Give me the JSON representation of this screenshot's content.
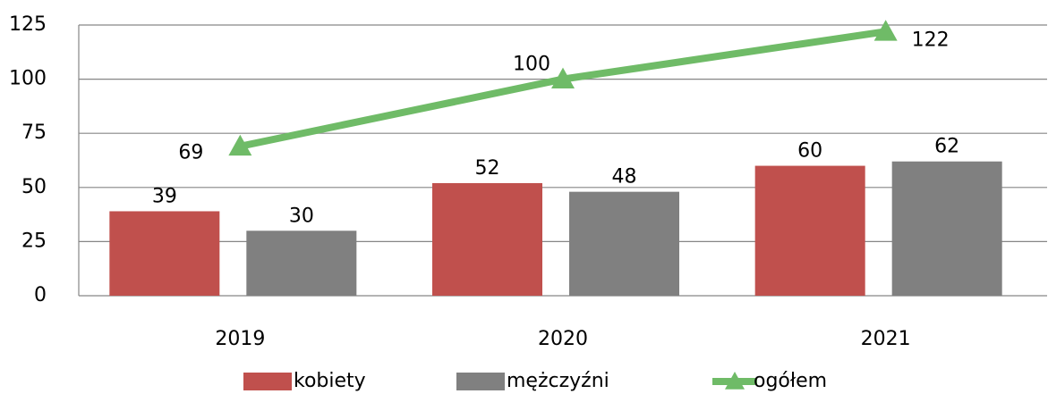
{
  "chart_data": {
    "type": "bar_line",
    "categories": [
      "2019",
      "2020",
      "2021"
    ],
    "series": [
      {
        "name": "kobiety",
        "type": "bar",
        "color": "#c0504d",
        "values": [
          39,
          52,
          60
        ]
      },
      {
        "name": "mężczyźni",
        "type": "bar",
        "color": "#808080",
        "values": [
          30,
          48,
          62
        ]
      },
      {
        "name": "ogółem",
        "type": "line",
        "color": "#6fbb67",
        "values": [
          69,
          100,
          122
        ]
      }
    ],
    "ylim": [
      0,
      125
    ],
    "yticks": [
      0,
      25,
      50,
      75,
      100,
      125
    ],
    "grid": true,
    "legend": "bottom"
  }
}
